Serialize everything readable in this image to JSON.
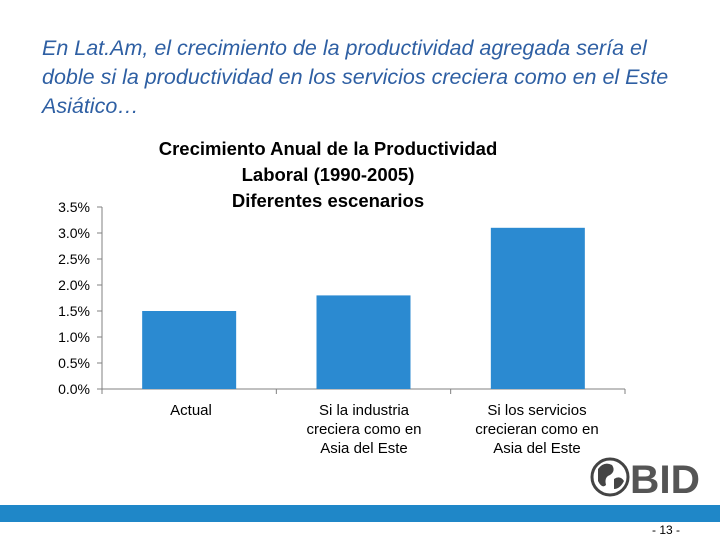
{
  "slide": {
    "title": "En Lat.Am, el crecimiento de la productividad agregada sería el doble si la productividad en los servicios creciera como en el Este Asiático…",
    "page_number": "- 13 -",
    "logo_text": "BID"
  },
  "colors": {
    "title": "#2e5fa3",
    "bar": "#2b8ad1",
    "footer": "#1f87c8",
    "axis": "#808080"
  },
  "chart_data": {
    "type": "bar",
    "title": "Crecimiento Anual de la Productividad Laboral (1990-2005) Diferentes escenarios",
    "title_lines": [
      "Crecimiento Anual de la Productividad",
      "Laboral (1990-2005)",
      "Diferentes escenarios"
    ],
    "categories": [
      "Actual",
      "Si la industria creciera como en Asia del Este",
      "Si los servicios crecieran como en Asia del Este"
    ],
    "category_lines": [
      [
        "Actual"
      ],
      [
        "Si la industria",
        "creciera como en",
        "Asia del Este"
      ],
      [
        "Si los servicios",
        "crecieran como en",
        "Asia del Este"
      ]
    ],
    "values": [
      1.5,
      1.8,
      3.1
    ],
    "unit": "%",
    "ylim": [
      0,
      3.5
    ],
    "yticks": [
      "0.0%",
      "0.5%",
      "1.0%",
      "1.5%",
      "2.0%",
      "2.5%",
      "3.0%",
      "3.5%"
    ],
    "grid": false,
    "legend": "none"
  }
}
